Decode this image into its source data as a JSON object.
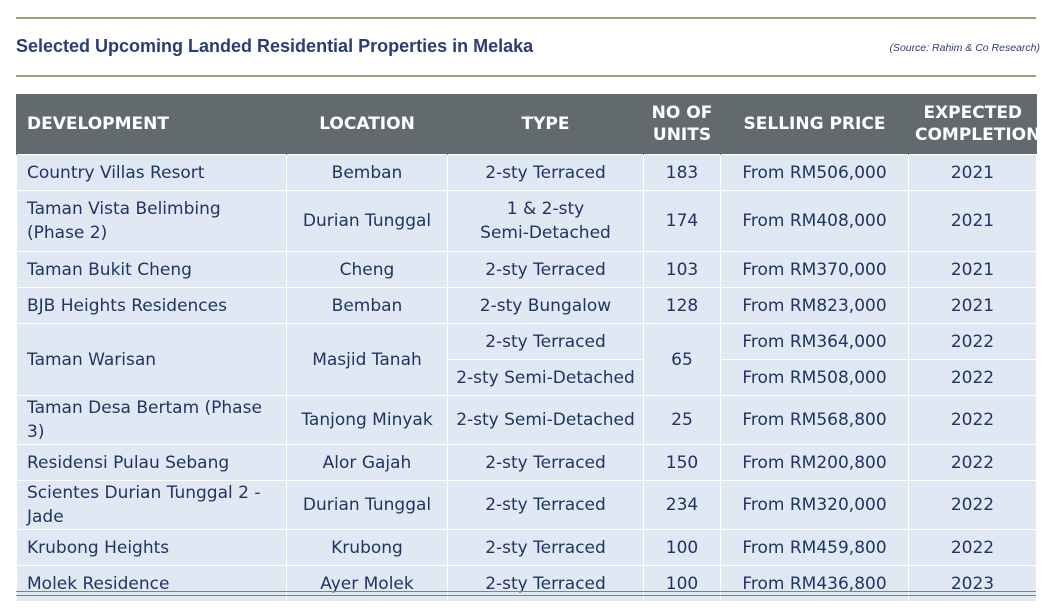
{
  "title": "Selected Upcoming Landed Residential Properties in Melaka",
  "source": "(Source: Rahim & Co Research)",
  "columns": {
    "development": "DEVELOPMENT",
    "location": "LOCATION",
    "type": "TYPE",
    "units_line1": "NO OF",
    "units_line2": "UNITS",
    "price": "SELLING PRICE",
    "completion_line1": "EXPECTED",
    "completion_line2": "COMPLETION"
  },
  "rows": [
    {
      "development": "Country Villas Resort",
      "location": "Bemban",
      "type": "2-sty Terraced",
      "units": "183",
      "price": "From RM506,000",
      "completion": "2021"
    },
    {
      "development": "Taman Vista Belimbing (Phase 2)",
      "location": "Durian Tunggal",
      "type_line1": "1 & 2-sty",
      "type_line2": "Semi-Detached",
      "units": "174",
      "price": "From RM408,000",
      "completion": "2021"
    },
    {
      "development": "Taman Bukit Cheng",
      "location": "Cheng",
      "type": "2-sty Terraced",
      "units": "103",
      "price": "From RM370,000",
      "completion": "2021"
    },
    {
      "development": "BJB Heights Residences",
      "location": "Bemban",
      "type": "2-sty Bungalow",
      "units": "128",
      "price": "From RM823,000",
      "completion": "2021"
    },
    {
      "development": "Taman Warisan",
      "location": "Masjid Tanah",
      "type": "2-sty Terraced",
      "units": "65",
      "price": "From RM364,000",
      "completion": "2022",
      "sub": {
        "type": "2-sty Semi-Detached",
        "price": "From RM508,000",
        "completion": "2022"
      }
    },
    {
      "development": "Taman Desa Bertam (Phase 3)",
      "location": "Tanjong Minyak",
      "type": "2-sty Semi-Detached",
      "units": "25",
      "price": "From RM568,800",
      "completion": "2022"
    },
    {
      "development": "Residensi Pulau Sebang",
      "location": "Alor Gajah",
      "type": "2-sty Terraced",
      "units": "150",
      "price": "From RM200,800",
      "completion": "2022"
    },
    {
      "development": "Scientes Durian Tunggal 2 - Jade",
      "location": "Durian Tunggal",
      "type": "2-sty Terraced",
      "units": "234",
      "price": "From RM320,000",
      "completion": "2022"
    },
    {
      "development": "Krubong Heights",
      "location": "Krubong",
      "type": "2-sty Terraced",
      "units": "100",
      "price": "From RM459,800",
      "completion": "2022"
    },
    {
      "development": "Molek Residence",
      "location": "Ayer Molek",
      "type": "2-sty Terraced",
      "units": "100",
      "price": "From RM436,800",
      "completion": "2023"
    }
  ]
}
